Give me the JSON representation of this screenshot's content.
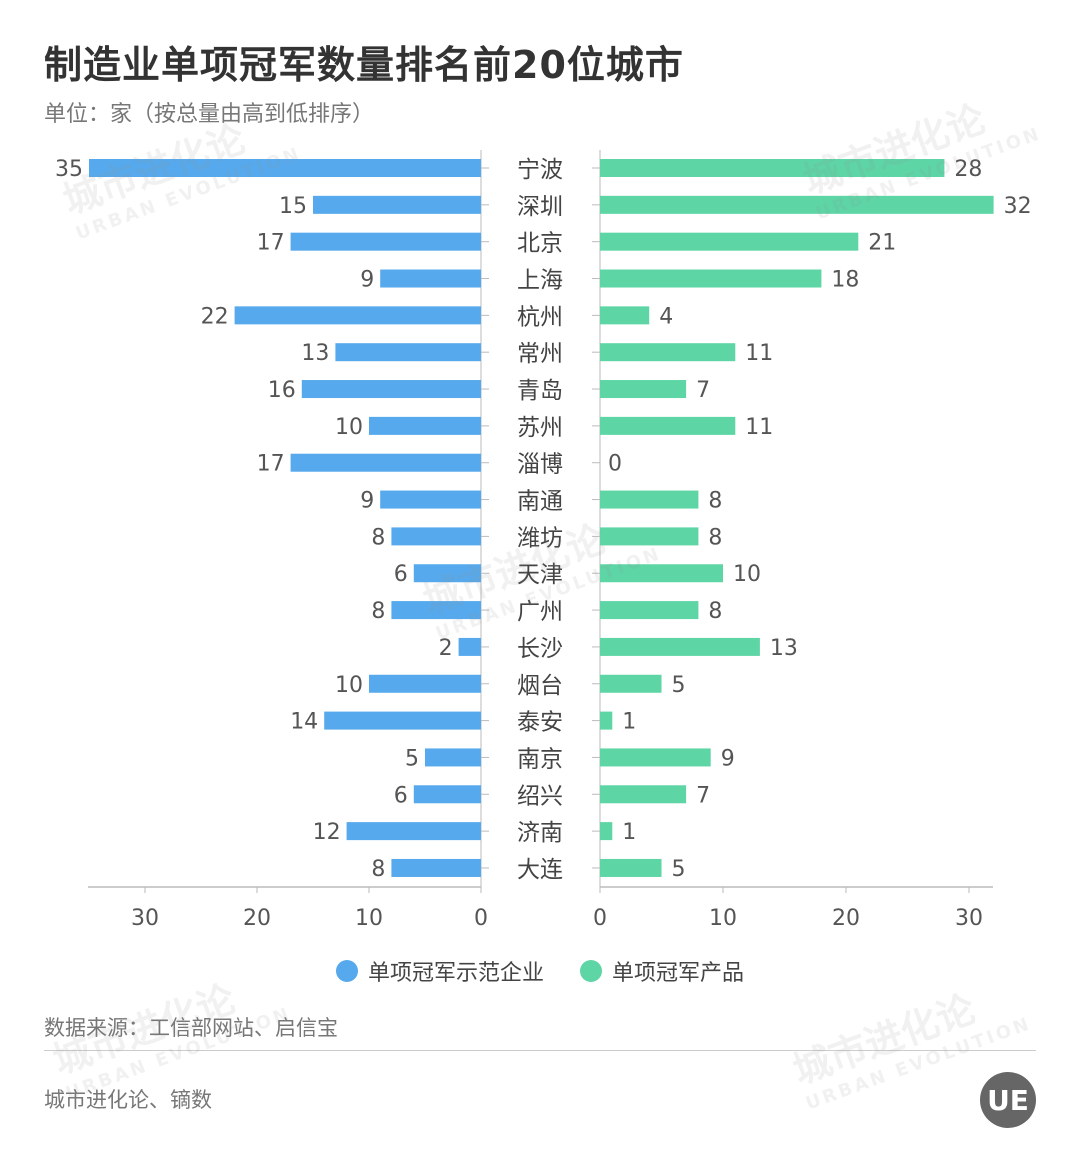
{
  "title": "制造业单项冠军数量排名前20位城市",
  "subtitle": "单位：家（按总量由高到低排序）",
  "source": "数据来源：工信部网站、启信宝",
  "credit": "城市进化论、镝数",
  "logo": "UE",
  "watermark": {
    "cn": "城市进化论",
    "en": "URBAN EVOLUTION"
  },
  "colors": {
    "left": "#56a9ec",
    "right": "#5dd5a5",
    "axis": "#bbbbbb"
  },
  "chart_data": {
    "type": "bar",
    "orientation": "horizontal-butterfly",
    "categories": [
      "宁波",
      "深圳",
      "北京",
      "上海",
      "杭州",
      "常州",
      "青岛",
      "苏州",
      "淄博",
      "南通",
      "潍坊",
      "天津",
      "广州",
      "长沙",
      "烟台",
      "泰安",
      "南京",
      "绍兴",
      "济南",
      "大连"
    ],
    "series": [
      {
        "name": "单项冠军示范企业",
        "values": [
          35,
          15,
          17,
          9,
          22,
          13,
          16,
          10,
          17,
          9,
          8,
          6,
          8,
          2,
          10,
          14,
          5,
          6,
          12,
          8
        ]
      },
      {
        "name": "单项冠军产品",
        "values": [
          28,
          32,
          21,
          18,
          4,
          11,
          7,
          11,
          0,
          8,
          8,
          10,
          8,
          13,
          5,
          1,
          9,
          7,
          1,
          5
        ]
      }
    ],
    "left_ticks": [
      30,
      20,
      10,
      0
    ],
    "right_ticks": [
      0,
      10,
      20,
      30
    ],
    "xlim_left": [
      0,
      35
    ],
    "xlim_right": [
      0,
      32
    ],
    "legend": "bottom",
    "grid": false
  }
}
